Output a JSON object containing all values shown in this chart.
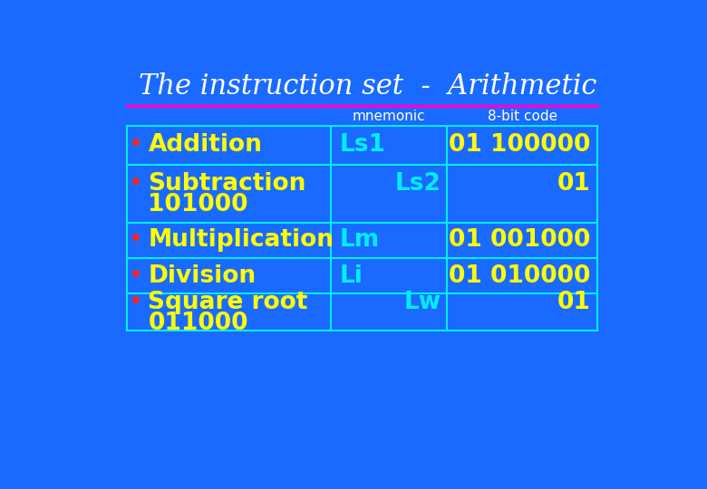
{
  "title": "The instruction set  -  Arithmetic",
  "bg_color": "#1a6aff",
  "title_color": "#ffffff",
  "title_fontsize": 22,
  "line_color": "#ff00cc",
  "table_border_color": "#00eeff",
  "header_mnemonic": "mnemonic",
  "header_code": "8-bit code",
  "header_color": "#ffffff",
  "header_fontsize": 11,
  "yellow": "#ffff00",
  "cyan": "#00eeff",
  "red_bullet": "#ff2222",
  "label_fontsize": 19,
  "mnemonic_fontsize": 19,
  "code_fontsize": 19,
  "rows": [
    {
      "label": "Addition",
      "label2": null,
      "bullet": true,
      "mnemonic": "Ls1",
      "mnemonic_align": "left",
      "code": "01 100000",
      "code_align": "right"
    },
    {
      "label": "Subtraction",
      "label2": "101000",
      "bullet": true,
      "mnemonic": "Ls2",
      "mnemonic_align": "right",
      "code": "01",
      "code_align": "right"
    },
    {
      "label": "Multiplication",
      "label2": null,
      "bullet": true,
      "mnemonic": "Lm",
      "mnemonic_align": "left",
      "code": "01 001000",
      "code_align": "right"
    },
    {
      "label": "Division",
      "label2": null,
      "bullet": true,
      "mnemonic": "Li",
      "mnemonic_align": "left",
      "code": "01 010000",
      "code_align": "right"
    },
    {
      "label": "Square root",
      "label2": "011000",
      "bullet": true,
      "mnemonic": "Lw",
      "mnemonic_align": "right",
      "code": "01",
      "code_align": "right"
    }
  ]
}
